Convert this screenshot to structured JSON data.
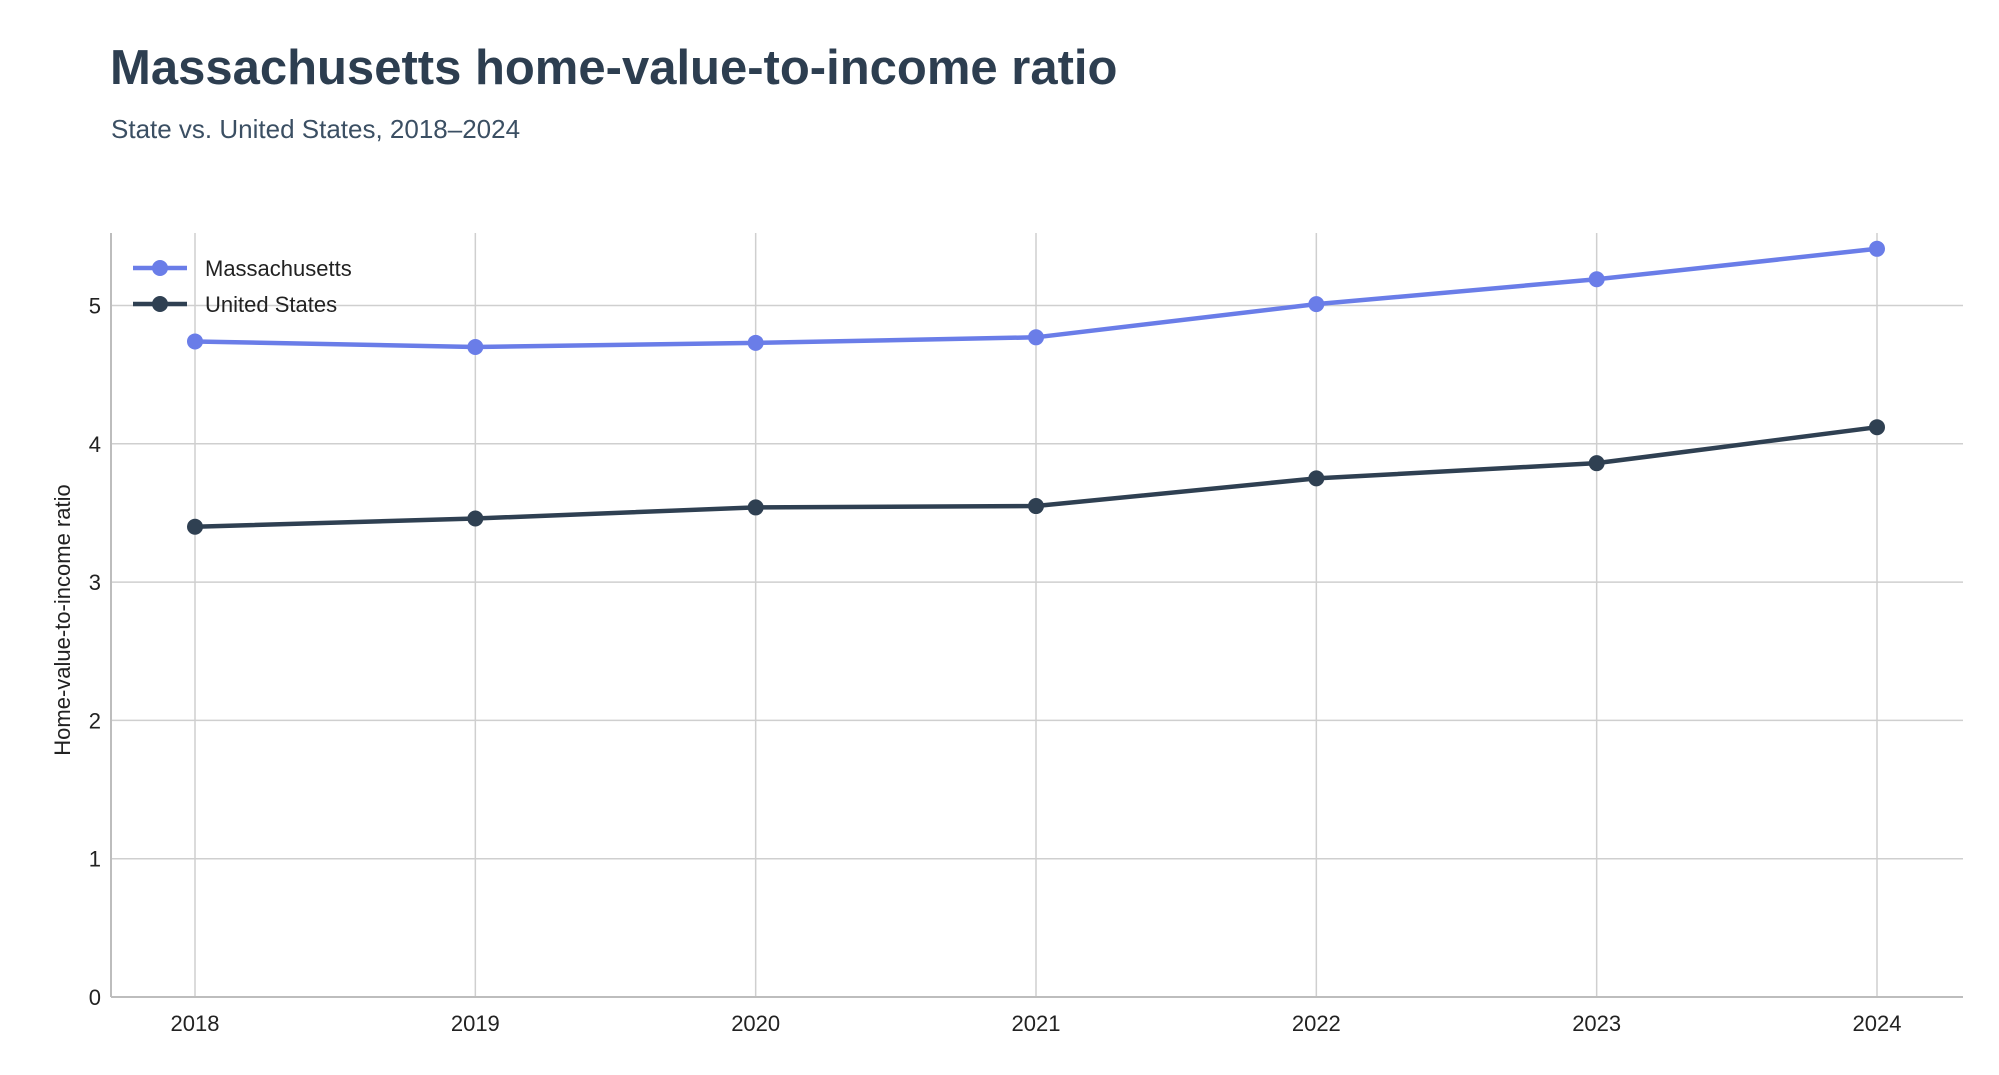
{
  "chart_data": {
    "type": "line",
    "title": "Massachusetts home-value-to-income ratio",
    "subtitle": "State vs. United States, 2018–2024",
    "xlabel": "",
    "ylabel": "Home-value-to-income ratio",
    "categories": [
      "2018",
      "2019",
      "2020",
      "2021",
      "2022",
      "2023",
      "2024"
    ],
    "ylim": [
      0,
      5.5
    ],
    "yticks": [
      0,
      1,
      2,
      3,
      4,
      5
    ],
    "grid": true,
    "legend_position": "top-left",
    "series": [
      {
        "name": "Massachusetts",
        "color": "#6a7de8",
        "values": [
          4.74,
          4.7,
          4.73,
          4.77,
          5.01,
          5.19,
          5.41
        ]
      },
      {
        "name": "United States",
        "color": "#2f4052",
        "values": [
          3.4,
          3.46,
          3.54,
          3.55,
          3.75,
          3.86,
          4.12
        ]
      }
    ]
  }
}
